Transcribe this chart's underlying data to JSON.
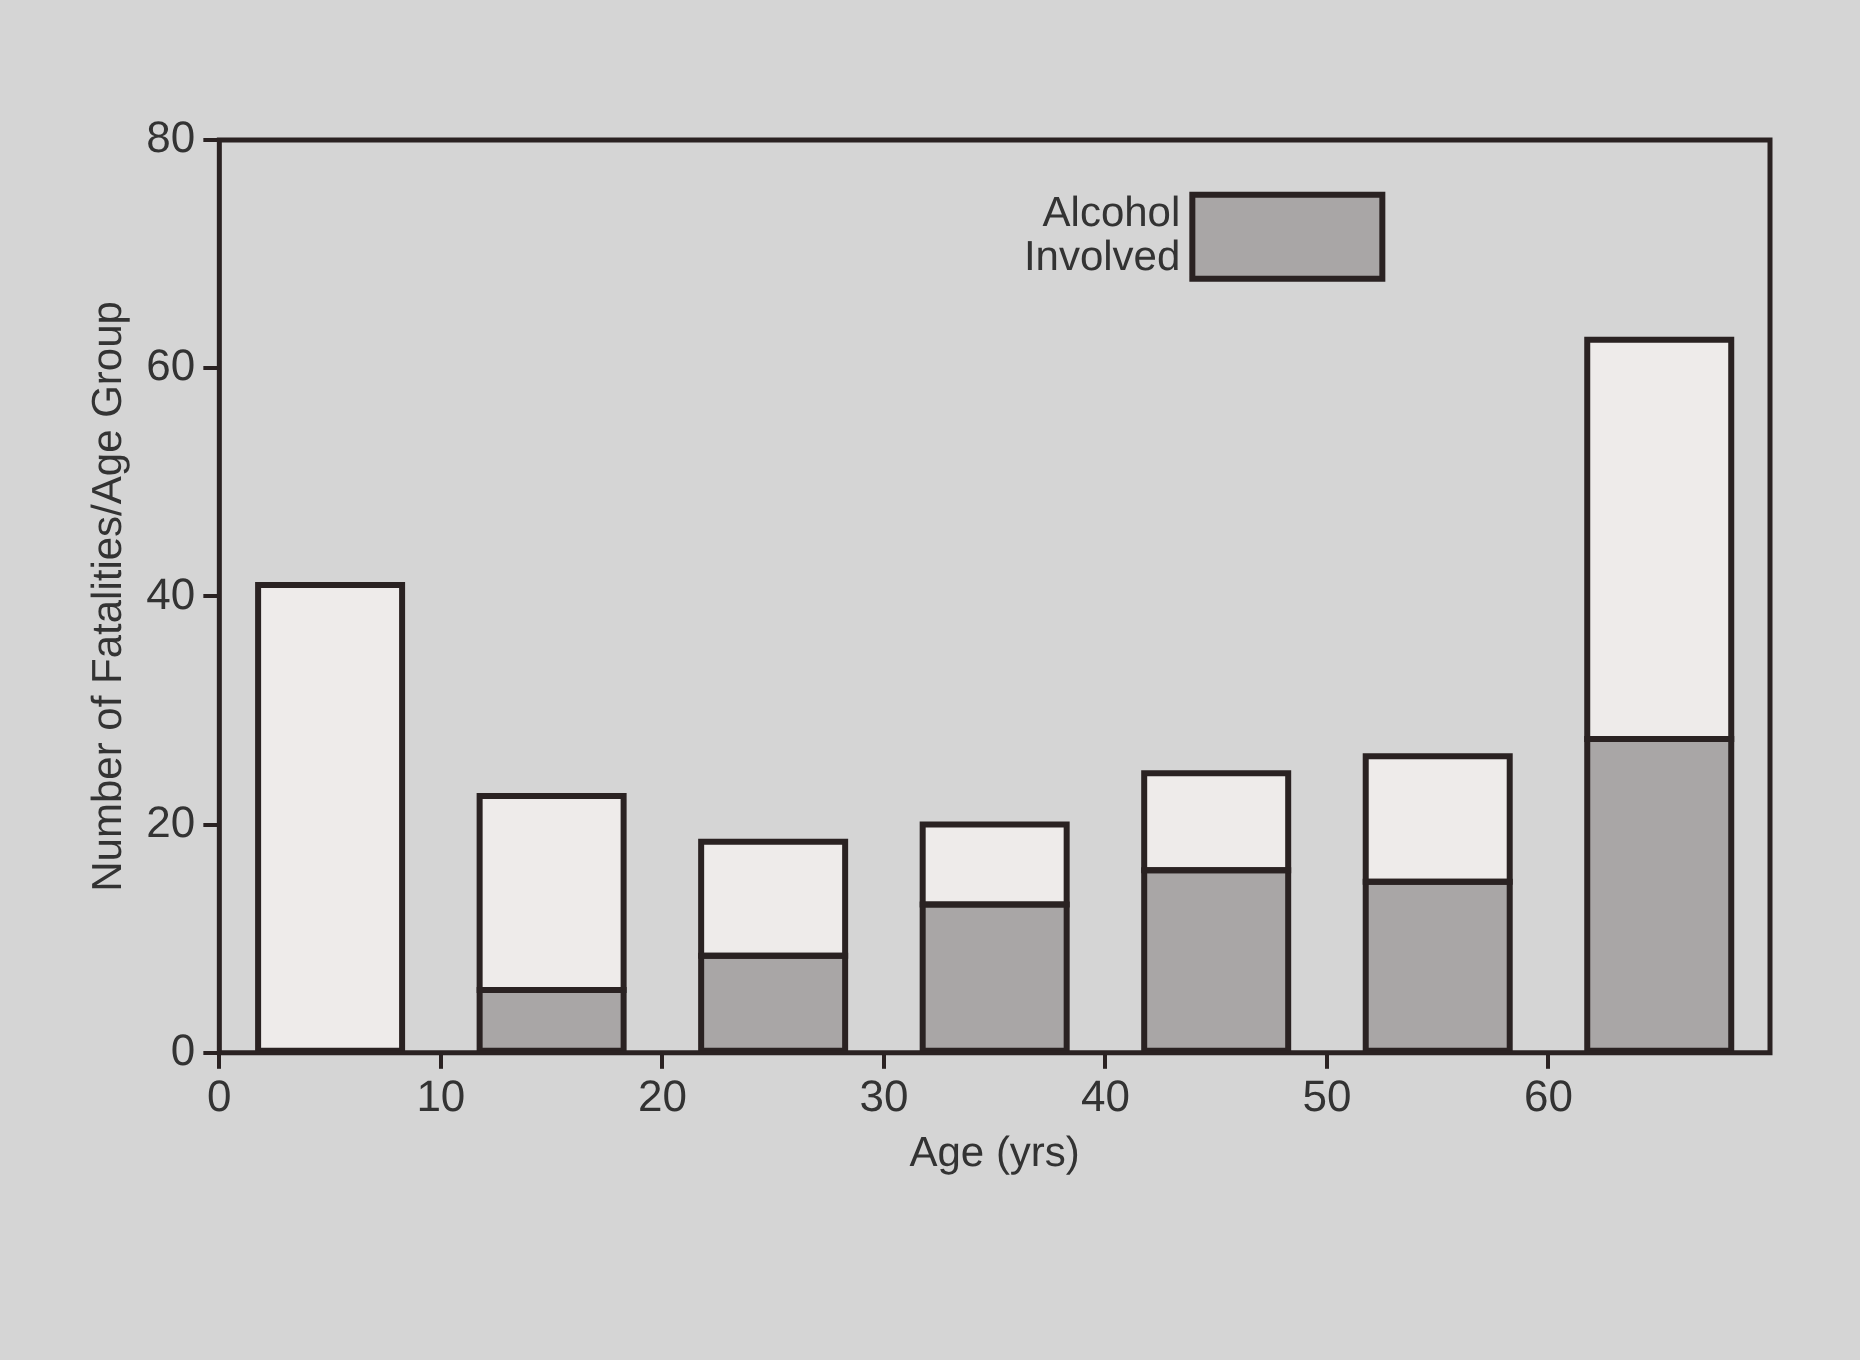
{
  "chart_data": {
    "type": "bar",
    "stacked": true,
    "xlabel": "Age (yrs)",
    "ylabel": "Number of Fatalities/Age Group",
    "x": [
      5,
      15,
      25,
      35,
      45,
      55,
      65
    ],
    "series": [
      {
        "name": "Alcohol Involved",
        "color": "#a9a6a6",
        "values": [
          0,
          5.5,
          8.5,
          13,
          16,
          15,
          27.5
        ]
      },
      {
        "color": "#eeebea",
        "values": [
          41,
          17,
          10,
          7,
          8.5,
          11,
          35
        ]
      }
    ],
    "xlim": [
      0,
      70
    ],
    "xticks": [
      0,
      10,
      20,
      30,
      40,
      50,
      60
    ],
    "ylim": [
      0,
      80
    ],
    "yticks": [
      0,
      20,
      40,
      60,
      80
    ],
    "grid": false,
    "legend": "top right"
  }
}
